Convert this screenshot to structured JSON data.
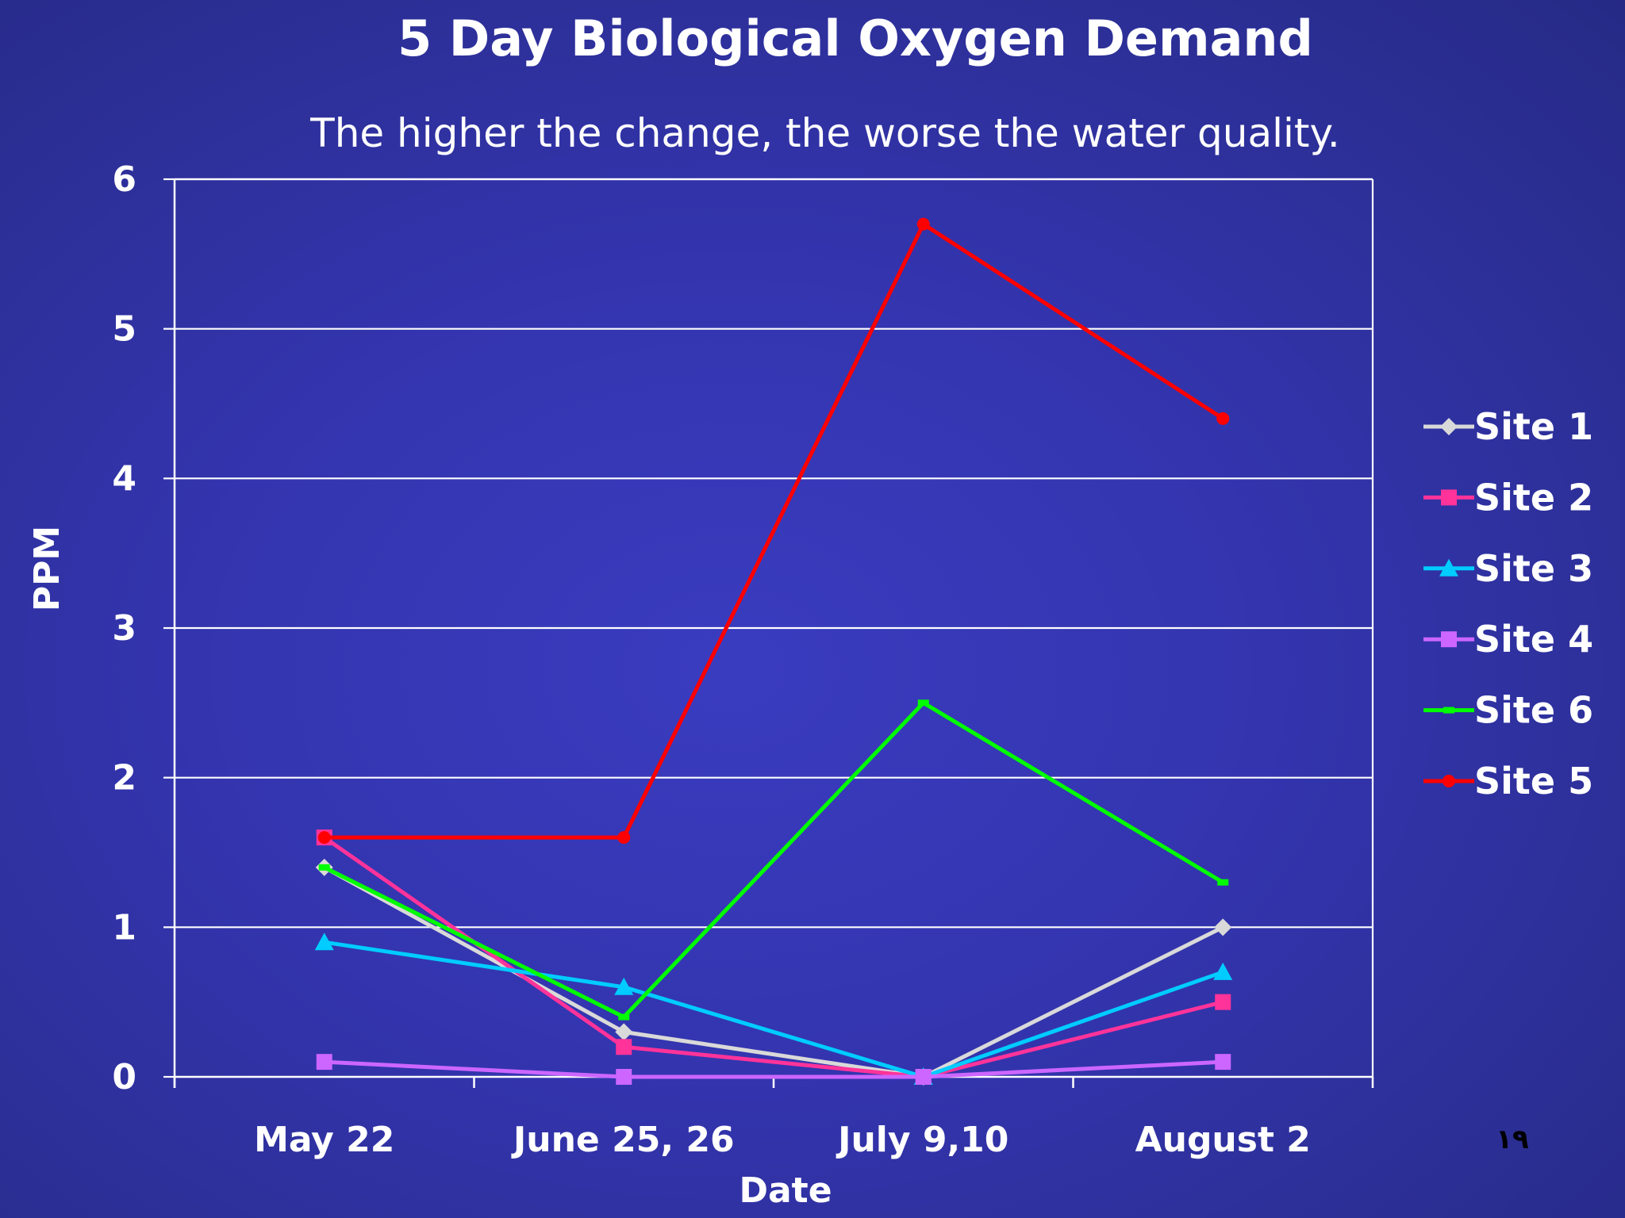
{
  "slide_number": "١٩",
  "colors": {
    "Site 1": "#d9d9d9",
    "Site 2": "#ff3399",
    "Site 3": "#00ccff",
    "Site 4": "#cc66ff",
    "Site 6": "#00ff00",
    "Site 5": "#ff0000"
  },
  "chart_data": {
    "type": "line",
    "title": "5 Day Biological Oxygen Demand",
    "subtitle": "The higher the change, the worse the water quality.",
    "xlabel": "Date",
    "ylabel": "PPM",
    "categories": [
      "May 22",
      "June 25, 26",
      "July 9,10",
      "August 2"
    ],
    "ylim": [
      0,
      6
    ],
    "yticks": [
      0,
      1,
      2,
      3,
      4,
      5,
      6
    ],
    "grid": true,
    "legend": "right",
    "series": [
      {
        "name": "Site 1",
        "marker": "diamond",
        "values": [
          1.4,
          0.3,
          0.0,
          1.0
        ]
      },
      {
        "name": "Site 2",
        "marker": "square",
        "values": [
          1.6,
          0.2,
          0.0,
          0.5
        ]
      },
      {
        "name": "Site 3",
        "marker": "triangle",
        "values": [
          0.9,
          0.6,
          0.0,
          0.7
        ]
      },
      {
        "name": "Site 4",
        "marker": "square",
        "values": [
          0.1,
          0.0,
          0.0,
          0.1
        ]
      },
      {
        "name": "Site 6",
        "marker": "dash",
        "values": [
          1.4,
          0.4,
          2.5,
          1.3
        ]
      },
      {
        "name": "Site 5",
        "marker": "circle",
        "values": [
          1.6,
          1.6,
          5.7,
          4.4
        ]
      }
    ]
  }
}
